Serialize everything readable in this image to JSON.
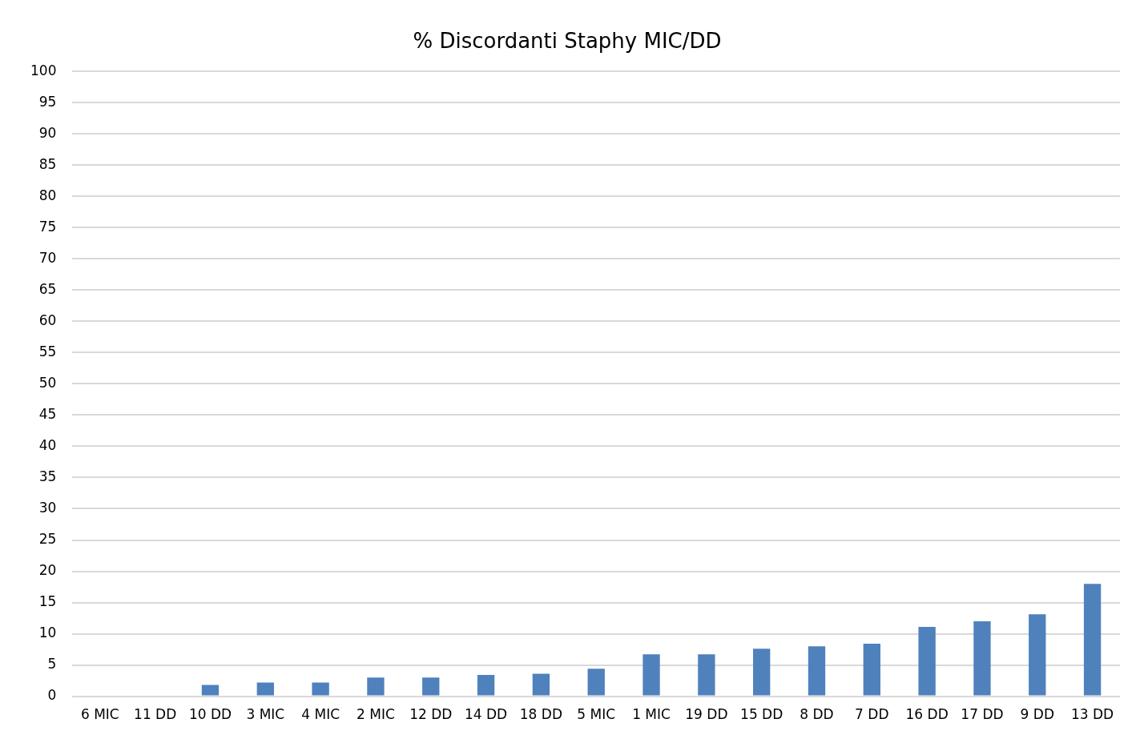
{
  "chart_data": {
    "type": "bar",
    "title": "% Discordanti Staphy MIC/DD",
    "categories": [
      "6 MIC",
      "11 DD",
      "10 DD",
      "3 MIC",
      "4 MIC",
      "2 MIC",
      "12 DD",
      "14 DD",
      "18 DD",
      "5 MIC",
      "1 MIC",
      "19 DD",
      "15 DD",
      "8 DD",
      "7 DD",
      "16 DD",
      "17 DD",
      "9 DD",
      "13 DD"
    ],
    "values": [
      0,
      0,
      1.8,
      2.2,
      2.2,
      3.0,
      3.0,
      3.4,
      3.6,
      4.4,
      6.7,
      6.7,
      7.6,
      8.0,
      8.4,
      11.1,
      12.0,
      13.1,
      18.0
    ],
    "color": "#4f81bd",
    "ylim": [
      0,
      100
    ],
    "yticks": [
      0,
      5,
      10,
      15,
      20,
      25,
      30,
      35,
      40,
      45,
      50,
      55,
      60,
      65,
      70,
      75,
      80,
      85,
      90,
      95,
      100
    ],
    "grid": "y",
    "legend": false
  }
}
